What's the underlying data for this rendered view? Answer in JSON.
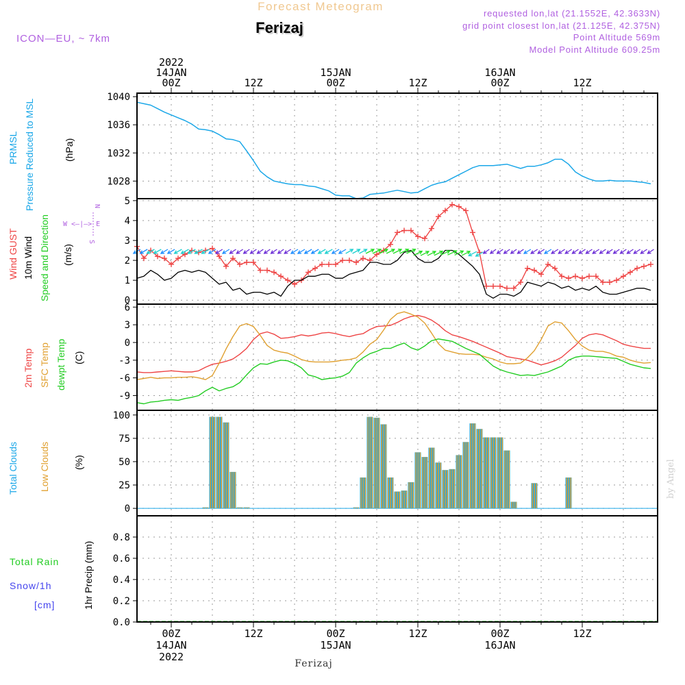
{
  "header": {
    "title": "Forecast Meteogram",
    "model": "ICON—EU, ~ 7km",
    "location": "Ferizaj",
    "requested": "requested lon,lat (21.1552E, 42.3633N)",
    "gridpoint": "grid point closest lon,lat (21.125E, 42.375N)",
    "point_alt": "Point Altitude 569m",
    "model_alt": "Model Point Altitude 609.25m",
    "footer_location": "Ferizaj",
    "watermark": "by Angel"
  },
  "time_axis": {
    "top_labels": [
      {
        "hour": 0,
        "lines": [
          "2022",
          "14JAN",
          "00Z"
        ]
      },
      {
        "hour": 12,
        "lines": [
          "12Z"
        ]
      },
      {
        "hour": 24,
        "lines": [
          "15JAN",
          "00Z"
        ]
      },
      {
        "hour": 36,
        "lines": [
          "12Z"
        ]
      },
      {
        "hour": 48,
        "lines": [
          "16JAN",
          "00Z"
        ]
      },
      {
        "hour": 60,
        "lines": [
          "12Z"
        ]
      }
    ],
    "bottom_labels": [
      {
        "hour": 0,
        "lines": [
          "00Z",
          "14JAN",
          "2022"
        ]
      },
      {
        "hour": 12,
        "lines": [
          "12Z"
        ]
      },
      {
        "hour": 24,
        "lines": [
          "00Z",
          "15JAN"
        ]
      },
      {
        "hour": 36,
        "lines": [
          "12Z"
        ]
      },
      {
        "hour": 48,
        "lines": [
          "00Z",
          "16JAN"
        ]
      },
      {
        "hour": 60,
        "lines": [
          "12Z"
        ]
      }
    ],
    "range_hours": [
      -5,
      71
    ]
  },
  "panel_labels": {
    "pressure": {
      "series": [
        "PRMSL",
        "Pressure Reduced to MSL"
      ],
      "unit": "(hPa)"
    },
    "wind": {
      "gust": "Wind GUST",
      "wind10": "10m Wind",
      "dir": "Speed and Direction",
      "unit": "(m/s)",
      "compass": [
        "N",
        "W <—|—> E",
        "S"
      ]
    },
    "temp": {
      "t2m": "2m Temp",
      "sfc": "SFC Temp",
      "dew": "dewpt Temp",
      "unit": "(C)"
    },
    "clouds": {
      "total": "Total Clouds",
      "low": "Low Clouds",
      "unit": "(%)"
    },
    "precip": {
      "rain": "Total  Rain",
      "snow": "Snow/1h",
      "snow_unit": "[cm]",
      "unit": "1hr Precip (mm)"
    }
  },
  "colors": {
    "pressure": "#1aa7e8",
    "gust": "#ee4444",
    "wind10": "#000000",
    "t2m": "#ee4444",
    "sfc": "#e0a030",
    "dew": "#22cc22",
    "total_clouds": "#1aa7e8",
    "low_clouds": "#e0a030",
    "rain": "#22cc22",
    "snow": "#4444ee",
    "title": "#f0c890",
    "info": "#b060e0",
    "arrow_calm": "#6a2bd6",
    "arrow_mid": "#1a8cff",
    "arrow_strong": "#20d0d0",
    "arrow_strongest": "#22dd22"
  },
  "chart_data": [
    {
      "type": "line",
      "title": "",
      "ylabel": "Pressure Reduced to MSL (hPa)",
      "ylim": [
        1025.5,
        1040.5
      ],
      "yticks": [
        1028,
        1032,
        1036,
        1040
      ],
      "series": [
        {
          "name": "PRMSL",
          "x": [
            -5,
            -4,
            -3,
            -2,
            -1,
            0,
            1,
            2,
            3,
            4,
            5,
            6,
            7,
            8,
            9,
            10,
            11,
            12,
            13,
            14,
            15,
            16,
            17,
            18,
            19,
            20,
            21,
            22,
            23,
            24,
            25,
            26,
            27,
            28,
            29,
            30,
            31,
            32,
            33,
            34,
            35,
            36,
            37,
            38,
            39,
            40,
            41,
            42,
            43,
            44,
            45,
            46,
            47,
            48,
            49,
            50,
            51,
            52,
            53,
            54,
            55,
            56,
            57,
            58,
            59,
            60,
            61,
            62,
            63,
            64,
            65,
            66,
            67,
            68,
            69,
            70
          ],
          "values": [
            1039.2,
            1039.0,
            1038.8,
            1038.3,
            1037.8,
            1037.4,
            1037.0,
            1036.6,
            1036.1,
            1035.4,
            1035.3,
            1035.1,
            1034.6,
            1034.0,
            1033.9,
            1033.6,
            1032.3,
            1030.9,
            1029.4,
            1028.6,
            1028.0,
            1027.8,
            1027.6,
            1027.5,
            1027.5,
            1027.3,
            1027.2,
            1026.9,
            1026.6,
            1026.0,
            1025.9,
            1025.9,
            1025.5,
            1025.6,
            1026.1,
            1026.2,
            1026.3,
            1026.5,
            1026.7,
            1026.5,
            1026.3,
            1026.4,
            1026.9,
            1027.4,
            1027.7,
            1027.9,
            1028.4,
            1028.9,
            1029.4,
            1029.9,
            1030.2,
            1030.2,
            1030.2,
            1030.3,
            1030.4,
            1030.1,
            1029.8,
            1030.1,
            1030.1,
            1030.3,
            1030.6,
            1031.1,
            1031.1,
            1030.4,
            1029.3,
            1028.7,
            1028.3,
            1028.0,
            1028.0,
            1028.1,
            1028.0,
            1028.0,
            1028.0,
            1027.9,
            1027.8,
            1027.6
          ]
        }
      ]
    },
    {
      "type": "line",
      "title": "",
      "ylabel": "(m/s)",
      "ylim": [
        -0.2,
        5.1
      ],
      "yticks": [
        0,
        1,
        2,
        3,
        4,
        5
      ],
      "x": [
        -5,
        -4,
        -3,
        -2,
        -1,
        0,
        1,
        2,
        3,
        4,
        5,
        6,
        7,
        8,
        9,
        10,
        11,
        12,
        13,
        14,
        15,
        16,
        17,
        18,
        19,
        20,
        21,
        22,
        23,
        24,
        25,
        26,
        27,
        28,
        29,
        30,
        31,
        32,
        33,
        34,
        35,
        36,
        37,
        38,
        39,
        40,
        41,
        42,
        43,
        44,
        45,
        46,
        47,
        48,
        49,
        50,
        51,
        52,
        53,
        54,
        55,
        56,
        57,
        58,
        59,
        60,
        61,
        62,
        63,
        64,
        65,
        66,
        67,
        68,
        69,
        70
      ],
      "series": [
        {
          "name": "Wind GUST",
          "values": [
            2.7,
            2.1,
            2.5,
            2.2,
            2.1,
            1.8,
            2.1,
            2.3,
            2.5,
            2.4,
            2.5,
            2.6,
            2.2,
            1.7,
            2.1,
            1.8,
            1.9,
            1.9,
            1.5,
            1.5,
            1.4,
            1.2,
            1.0,
            0.8,
            1.0,
            1.4,
            1.6,
            1.8,
            1.8,
            1.8,
            2.0,
            2.0,
            1.9,
            2.1,
            2.0,
            2.3,
            2.5,
            2.8,
            3.4,
            3.5,
            3.5,
            3.2,
            3.1,
            3.6,
            4.2,
            4.5,
            4.8,
            4.7,
            4.5,
            3.4,
            2.4,
            0.7,
            0.7,
            0.7,
            0.6,
            0.6,
            0.9,
            1.6,
            1.5,
            1.3,
            1.8,
            1.6,
            1.2,
            1.1,
            1.2,
            1.1,
            1.2,
            1.2,
            0.9,
            0.9,
            1.0,
            1.2,
            1.4,
            1.6,
            1.7,
            1.8
          ]
        },
        {
          "name": "10m Wind",
          "values": [
            1.1,
            1.2,
            1.5,
            1.3,
            1.0,
            1.1,
            1.4,
            1.5,
            1.4,
            1.5,
            1.4,
            1.1,
            0.8,
            0.9,
            0.5,
            0.6,
            0.3,
            0.4,
            0.4,
            0.3,
            0.4,
            0.2,
            0.7,
            1.0,
            1.0,
            1.2,
            1.2,
            1.3,
            1.3,
            1.1,
            1.1,
            1.3,
            1.4,
            1.5,
            1.9,
            1.9,
            1.8,
            1.8,
            2.0,
            2.4,
            2.5,
            2.1,
            1.9,
            1.9,
            2.1,
            2.5,
            2.5,
            2.3,
            2.0,
            1.7,
            1.3,
            0.3,
            0.1,
            0.3,
            0.3,
            0.2,
            0.4,
            0.9,
            0.8,
            0.7,
            0.9,
            0.8,
            0.6,
            0.7,
            0.5,
            0.6,
            0.5,
            0.7,
            0.4,
            0.3,
            0.3,
            0.4,
            0.5,
            0.6,
            0.6,
            0.5
          ]
        }
      ]
    },
    {
      "type": "line",
      "title": "",
      "ylabel": "(C)",
      "ylim": [
        -11.5,
        6.5
      ],
      "yticks": [
        -9,
        -6,
        -3,
        0,
        3,
        6
      ],
      "x": [
        -5,
        -4,
        -3,
        -2,
        -1,
        0,
        1,
        2,
        3,
        4,
        5,
        6,
        7,
        8,
        9,
        10,
        11,
        12,
        13,
        14,
        15,
        16,
        17,
        18,
        19,
        20,
        21,
        22,
        23,
        24,
        25,
        26,
        27,
        28,
        29,
        30,
        31,
        32,
        33,
        34,
        35,
        36,
        37,
        38,
        39,
        40,
        41,
        42,
        43,
        44,
        45,
        46,
        47,
        48,
        49,
        50,
        51,
        52,
        53,
        54,
        55,
        56,
        57,
        58,
        59,
        60,
        61,
        62,
        63,
        64,
        65,
        66,
        67,
        68,
        69,
        70
      ],
      "series": [
        {
          "name": "2m Temp",
          "values": [
            -5.0,
            -5.1,
            -5.1,
            -5.0,
            -4.9,
            -4.8,
            -4.9,
            -5.0,
            -5.0,
            -4.8,
            -4.2,
            -3.7,
            -3.5,
            -3.2,
            -2.8,
            -2.0,
            -1.0,
            0.5,
            1.5,
            1.8,
            1.4,
            0.7,
            0.8,
            1.0,
            1.3,
            1.1,
            1.3,
            1.6,
            1.7,
            1.5,
            1.2,
            1.0,
            1.3,
            1.5,
            2.2,
            2.7,
            2.8,
            2.9,
            3.4,
            4.0,
            4.4,
            4.6,
            4.3,
            3.8,
            3.0,
            2.0,
            1.3,
            1.0,
            0.6,
            0.2,
            -0.3,
            -0.8,
            -1.3,
            -1.8,
            -2.4,
            -2.6,
            -2.8,
            -3.0,
            -3.4,
            -3.8,
            -3.5,
            -3.1,
            -2.5,
            -1.5,
            -0.5,
            0.7,
            1.3,
            1.5,
            1.3,
            0.8,
            0.3,
            -0.3,
            -0.6,
            -0.8,
            -1.0,
            -1.0
          ]
        },
        {
          "name": "SFC Temp",
          "values": [
            -6.3,
            -6.1,
            -5.9,
            -6.1,
            -6.0,
            -6.0,
            -5.9,
            -5.9,
            -5.8,
            -6.0,
            -6.3,
            -5.6,
            -3.5,
            -1.1,
            1.0,
            2.8,
            3.2,
            2.7,
            1.2,
            -0.5,
            -1.3,
            -1.6,
            -1.8,
            -2.3,
            -2.9,
            -3.2,
            -3.3,
            -3.3,
            -3.3,
            -3.2,
            -3.0,
            -2.9,
            -2.6,
            -1.6,
            -0.3,
            0.5,
            2.1,
            3.9,
            4.9,
            5.2,
            4.8,
            4.3,
            3.3,
            1.6,
            -0.2,
            -1.3,
            -1.6,
            -1.9,
            -2.0,
            -2.0,
            -2.1,
            -2.5,
            -2.8,
            -3.3,
            -3.6,
            -3.6,
            -3.5,
            -2.6,
            -1.4,
            0.5,
            2.8,
            3.5,
            3.3,
            2.0,
            0.5,
            -0.6,
            -1.3,
            -1.5,
            -1.5,
            -1.8,
            -2.3,
            -2.5,
            -3.0,
            -3.3,
            -3.5,
            -3.4
          ]
        },
        {
          "name": "dewpt Temp",
          "values": [
            -10.2,
            -10.4,
            -10.1,
            -10.0,
            -9.8,
            -9.7,
            -9.8,
            -9.5,
            -9.3,
            -9.0,
            -8.2,
            -7.6,
            -8.2,
            -7.8,
            -7.5,
            -6.8,
            -5.5,
            -4.3,
            -3.6,
            -3.7,
            -3.3,
            -3.0,
            -3.1,
            -3.6,
            -4.3,
            -5.5,
            -5.8,
            -6.3,
            -6.1,
            -6.0,
            -5.7,
            -5.1,
            -3.5,
            -2.6,
            -1.9,
            -1.5,
            -1.0,
            -1.0,
            -0.5,
            -0.1,
            -0.9,
            -1.3,
            -0.6,
            0.3,
            0.6,
            0.4,
            0.2,
            -0.4,
            -1.0,
            -1.5,
            -2.0,
            -3.0,
            -4.0,
            -4.6,
            -5.0,
            -5.3,
            -5.6,
            -5.5,
            -5.6,
            -5.3,
            -5.0,
            -4.5,
            -4.0,
            -3.0,
            -2.5,
            -2.3,
            -2.3,
            -2.4,
            -2.5,
            -2.6,
            -2.7,
            -3.2,
            -3.7,
            -4.0,
            -4.3,
            -4.4
          ]
        }
      ]
    },
    {
      "type": "bar",
      "title": "",
      "ylabel": "(%)",
      "ylim": [
        -8,
        105
      ],
      "yticks": [
        0,
        25,
        50,
        75,
        100
      ],
      "x": [
        -5,
        -4,
        -3,
        -2,
        -1,
        0,
        1,
        2,
        3,
        4,
        5,
        6,
        7,
        8,
        9,
        10,
        11,
        12,
        13,
        14,
        15,
        16,
        17,
        18,
        19,
        20,
        21,
        22,
        23,
        24,
        25,
        26,
        27,
        28,
        29,
        30,
        31,
        32,
        33,
        34,
        35,
        36,
        37,
        38,
        39,
        40,
        41,
        42,
        43,
        44,
        45,
        46,
        47,
        48,
        49,
        50,
        51,
        52,
        53,
        54,
        55,
        56,
        57,
        58,
        59,
        60,
        61,
        62,
        63,
        64,
        65,
        66,
        67,
        68,
        69,
        70
      ],
      "series": [
        {
          "name": "Total Clouds",
          "values": [
            0,
            0,
            0,
            0,
            0,
            0,
            0,
            0,
            0,
            0,
            1,
            98,
            98,
            92,
            39,
            1,
            1,
            0,
            0,
            0,
            0,
            0,
            0,
            0,
            0,
            0,
            0,
            0,
            0,
            0,
            0,
            0,
            1,
            33,
            98,
            97,
            90,
            33,
            18,
            19,
            28,
            60,
            55,
            65,
            49,
            41,
            42,
            57,
            71,
            91,
            85,
            76,
            76,
            76,
            62,
            7,
            0,
            0,
            27,
            0,
            0,
            0,
            0,
            33,
            0,
            0,
            0,
            0,
            0,
            0,
            0,
            0,
            0,
            0,
            0,
            0
          ]
        },
        {
          "name": "Low Clouds",
          "values": [
            0,
            0,
            0,
            0,
            0,
            0,
            0,
            0,
            0,
            0,
            1,
            98,
            98,
            92,
            39,
            1,
            1,
            0,
            0,
            0,
            0,
            0,
            0,
            0,
            0,
            0,
            0,
            0,
            0,
            0,
            0,
            0,
            1,
            33,
            98,
            97,
            90,
            33,
            18,
            19,
            28,
            60,
            55,
            65,
            49,
            41,
            42,
            57,
            71,
            91,
            85,
            76,
            76,
            76,
            62,
            7,
            0,
            0,
            27,
            0,
            0,
            0,
            0,
            33,
            0,
            0,
            0,
            0,
            0,
            0,
            0,
            0,
            0,
            0,
            0,
            0
          ]
        }
      ]
    },
    {
      "type": "bar",
      "title": "",
      "ylabel": "1hr Precip (mm)",
      "ylim": [
        0,
        1.0
      ],
      "yticks": [
        0,
        0.2,
        0.4,
        0.6,
        0.8
      ],
      "series": [
        {
          "name": "Total Rain",
          "values": []
        },
        {
          "name": "Snow/1h",
          "values": []
        }
      ]
    }
  ]
}
